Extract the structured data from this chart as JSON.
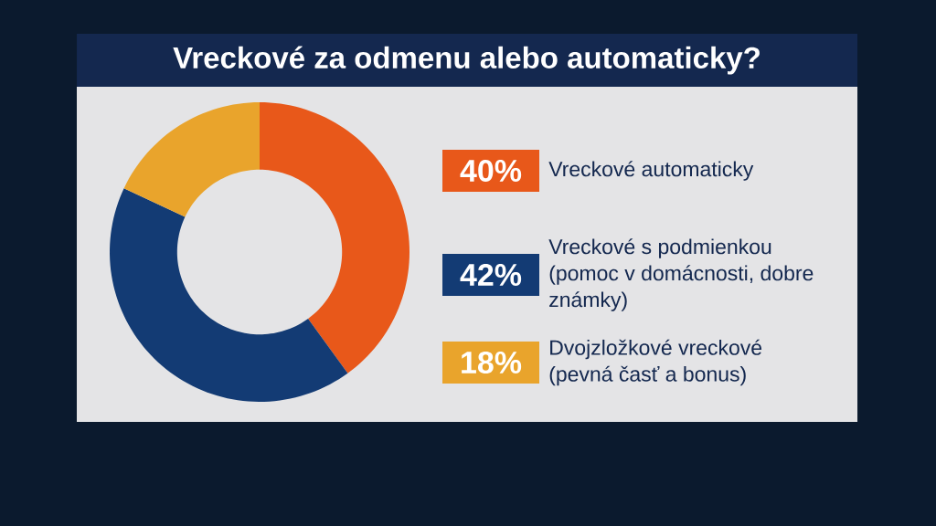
{
  "chart_data": {
    "type": "donut",
    "title": "Vreckové za odmenu alebo automaticky?",
    "categories": [
      "Vreckové automaticky",
      "Vreckové s podmienkou (pomoc v domácnosti, dobre známky)",
      "Dvojzložkové vreckové (pevná časť a bonus)"
    ],
    "values": [
      40,
      42,
      18
    ],
    "value_labels": [
      "40%",
      "42%",
      "18%"
    ],
    "colors": [
      "#e8581a",
      "#133b74",
      "#e9a42c"
    ],
    "legend": "right"
  }
}
